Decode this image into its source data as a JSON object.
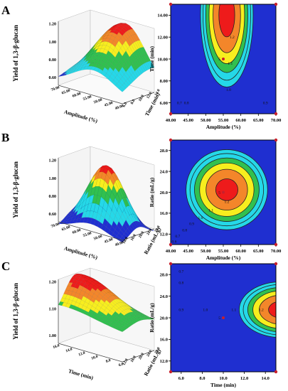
{
  "panel_labels": [
    "A",
    "B",
    "C"
  ],
  "colors": {
    "red": "#ee1b1b",
    "orange": "#f3862a",
    "yellow": "#f7ee1e",
    "green": "#31c04f",
    "cyan": "#25d8e8",
    "blue": "#1f2fd0",
    "point": "#c8202c"
  },
  "chart_data": [
    {
      "panel": "A",
      "type": "surface",
      "zlabel": "Yield of 1,3-β-glucan",
      "xlabel": "Amplitude (%)",
      "ylabel": "Time (min)",
      "zticks": [
        "0.60",
        "0.80",
        "1.00",
        "1.20"
      ],
      "xticks": [
        "70.00",
        "65.00",
        "60.00",
        "55.00",
        "50.00",
        "45.00",
        "40.00"
      ],
      "yticks": [
        "6.0",
        "8.0",
        "10.0",
        "12.0",
        "14.0"
      ]
    },
    {
      "panel": "A",
      "type": "contour",
      "xlabel": "Amplitude (%)",
      "ylabel": "Time (min)",
      "xlim": [
        40,
        70
      ],
      "ylim": [
        5,
        15
      ],
      "xticks": [
        "40.00",
        "45.00",
        "50.00",
        "55.00",
        "60.00",
        "65.00",
        "70.00"
      ],
      "yticks": [
        "6.00",
        "8.00",
        "10.00",
        "12.00",
        "14.00"
      ],
      "center": [
        56,
        14
      ],
      "radii": [
        3.2,
        2.8
      ],
      "fill_levels": [
        1.25,
        1.2,
        1.1,
        1.0,
        0.9,
        0.8,
        0.7
      ],
      "contour_labels": [
        {
          "text": "1.2",
          "x": 57.5,
          "y": 12.0
        },
        {
          "text": "1.1",
          "x": 57.0,
          "y": 9.6
        },
        {
          "text": "1.0",
          "x": 56.5,
          "y": 7.2
        },
        {
          "text": "0.9",
          "x": 67.0,
          "y": 6.0
        },
        {
          "text": "0.8",
          "x": 44.5,
          "y": 6.0
        },
        {
          "text": "0.7",
          "x": 42.5,
          "y": 6.0
        }
      ],
      "design_point": {
        "x": 55,
        "y": 10,
        "label": "5"
      },
      "corner_points": [
        [
          40,
          5
        ],
        [
          70,
          5
        ],
        [
          40,
          15
        ],
        [
          70,
          15
        ]
      ]
    },
    {
      "panel": "B",
      "type": "surface",
      "zlabel": "Yield of 1,3-β-glucan",
      "xlabel": "Amplitude (%)",
      "ylabel": "Ratio (mL/g)",
      "zticks": [
        "0.60",
        "0.80",
        "1.00",
        "1.20"
      ],
      "xticks": [
        "70.00",
        "65.00",
        "60.00",
        "55.00",
        "50.00",
        "45.00",
        "40.00"
      ],
      "yticks": [
        "10.0",
        "16.0",
        "20.0",
        "24.0",
        "28.0"
      ]
    },
    {
      "panel": "B",
      "type": "contour",
      "xlabel": "Amplitude (%)",
      "ylabel": "Ratio (mL/g)",
      "xlim": [
        40,
        70
      ],
      "ylim": [
        10,
        30
      ],
      "xticks": [
        "40.00",
        "45.00",
        "50.00",
        "55.00",
        "60.00",
        "65.00",
        "70.00"
      ],
      "yticks": [
        "12.0",
        "16.0",
        "20.0",
        "24.0",
        "28.0"
      ],
      "center": [
        56,
        20.5
      ],
      "radii": [
        5.0,
        3.3
      ],
      "fill_levels": [
        1.24,
        1.2,
        1.1,
        1.0,
        0.9,
        0.8,
        0.7
      ],
      "contour_labels": [
        {
          "text": "1.2",
          "x": 56.0,
          "y": 18.2
        },
        {
          "text": "1.1",
          "x": 51.5,
          "y": 16.6
        },
        {
          "text": "1.0",
          "x": 48.5,
          "y": 15.2
        },
        {
          "text": "0.9",
          "x": 46.0,
          "y": 14.0
        },
        {
          "text": "0.8",
          "x": 44.0,
          "y": 12.8
        },
        {
          "text": "0.7",
          "x": 42.0,
          "y": 11.6
        },
        {
          "text": "0.6",
          "x": 41.0,
          "y": 10.6
        }
      ],
      "design_point": {
        "x": 55,
        "y": 20,
        "label": "5"
      },
      "corner_points": [
        [
          40,
          10
        ],
        [
          70,
          10
        ],
        [
          40,
          30
        ],
        [
          70,
          30
        ]
      ]
    },
    {
      "panel": "C",
      "type": "surface",
      "zlabel": "Yield of 1,3-β-glucan",
      "xlabel": "Time (min)",
      "ylabel": "Ratio (mL/g)",
      "zticks": [
        "1.00",
        "1.10",
        "1.20"
      ],
      "xticks": [
        "16.0",
        "14.0",
        "12.0",
        "10.0",
        "8.0",
        "6.0"
      ],
      "yticks": [
        "12.0",
        "16.0",
        "20.0",
        "24.0",
        "28.0"
      ]
    },
    {
      "panel": "C",
      "type": "contour",
      "xlabel": "Time (min)",
      "ylabel": "Ratio (mL/g)",
      "xlim": [
        5,
        15
      ],
      "ylim": [
        10,
        30
      ],
      "xticks": [
        "6.0",
        "8.0",
        "10.0",
        "12.0",
        "14.0"
      ],
      "yticks": [
        "12.0",
        "16.0",
        "20.0",
        "24.0",
        "28.0"
      ],
      "center": [
        15.5,
        21.5
      ],
      "radii": [
        1.7,
        2.2
      ],
      "fill_levels": [
        1.25,
        1.2,
        1.1,
        1.0,
        0.9,
        0.8,
        0.7
      ],
      "contour_labels": [
        {
          "text": "1.2",
          "x": 13.6,
          "y": 21.5
        },
        {
          "text": "1.1",
          "x": 11.0,
          "y": 21.5
        },
        {
          "text": "1.0",
          "x": 8.3,
          "y": 21.5
        },
        {
          "text": "0.9",
          "x": 6.0,
          "y": 21.5
        },
        {
          "text": "0.8",
          "x": 6.0,
          "y": 26.5
        },
        {
          "text": "0.7",
          "x": 6.0,
          "y": 28.6
        }
      ],
      "design_point": {
        "x": 10,
        "y": 20,
        "label": "5"
      },
      "corner_points": [
        [
          5,
          10
        ],
        [
          15,
          10
        ],
        [
          5,
          30
        ],
        [
          15,
          30
        ]
      ]
    }
  ]
}
